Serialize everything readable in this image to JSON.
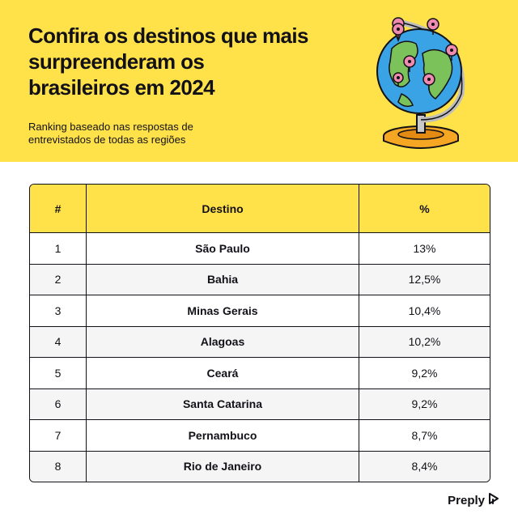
{
  "header": {
    "title": "Confira os destinos que mais\nsurpreenderam os\nbrasileiros em 2024",
    "subtitle": "Ranking baseado nas respostas de\nentrevistados de todas as regiões"
  },
  "table": {
    "columns": [
      "#",
      "Destino",
      "%"
    ],
    "rows": [
      {
        "rank": "1",
        "destino": "São Paulo",
        "pct": "13%"
      },
      {
        "rank": "2",
        "destino": "Bahia",
        "pct": "12,5%"
      },
      {
        "rank": "3",
        "destino": "Minas Gerais",
        "pct": "10,4%"
      },
      {
        "rank": "4",
        "destino": "Alagoas",
        "pct": "10,2%"
      },
      {
        "rank": "5",
        "destino": "Ceará",
        "pct": "9,2%"
      },
      {
        "rank": "6",
        "destino": "Santa Catarina",
        "pct": "9,2%"
      },
      {
        "rank": "7",
        "destino": "Pernambuco",
        "pct": "8,7%"
      },
      {
        "rank": "8",
        "destino": "Rio de Janeiro",
        "pct": "8,4%"
      }
    ]
  },
  "brand": {
    "name": "Preply",
    "icon": "preply-logo-icon"
  },
  "illustration": {
    "icon": "globe-with-pins-icon"
  },
  "colors": {
    "accent": "#ffe14a",
    "ink": "#121117",
    "row_alt": "#f5f5f5",
    "ocean": "#3aa3e6",
    "land": "#7cc25a",
    "pin": "#f08bb0",
    "stand": "#f5a623"
  }
}
